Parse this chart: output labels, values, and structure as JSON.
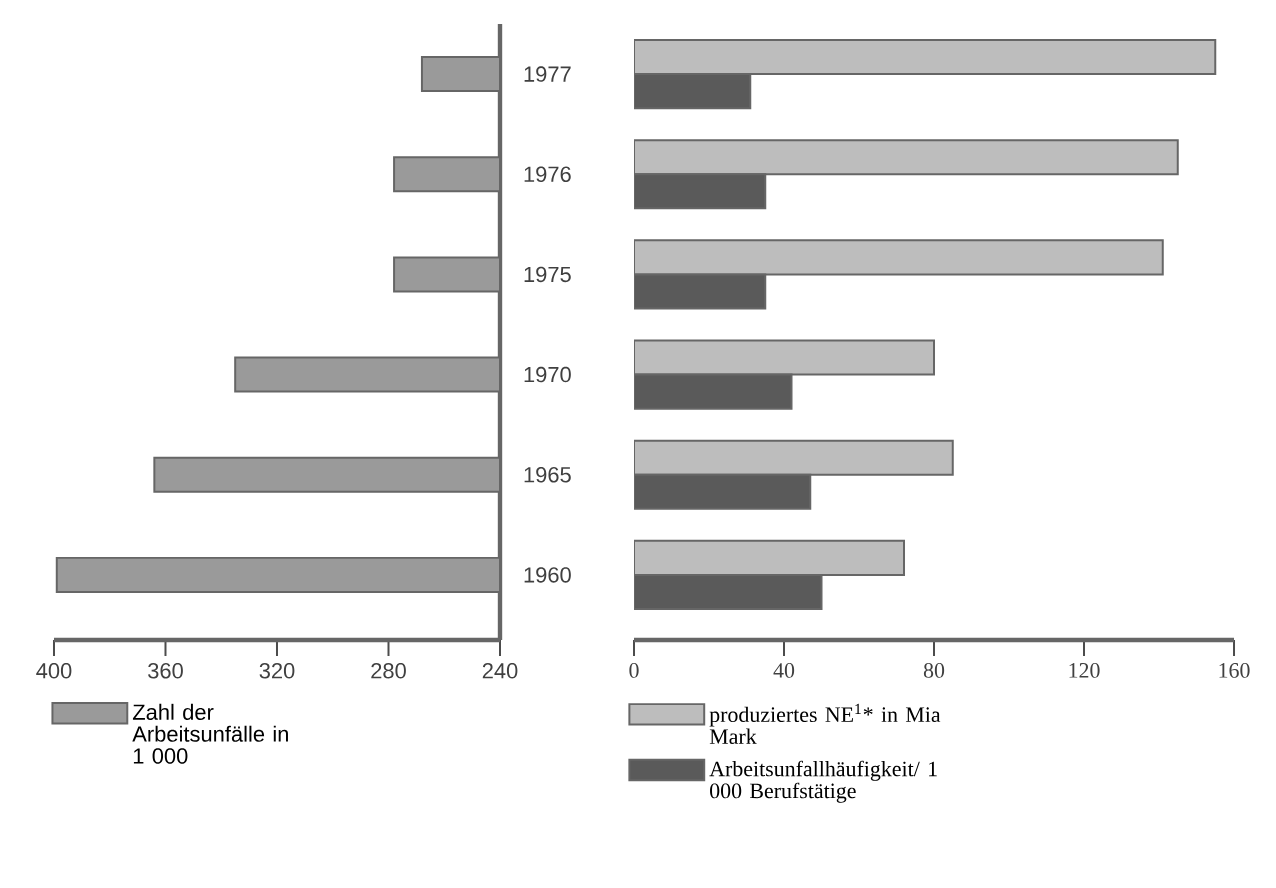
{
  "chart_data": [
    {
      "type": "bar",
      "orientation": "horizontal",
      "categories": [
        "1977",
        "1976",
        "1975",
        "1970",
        "1965",
        "1960"
      ],
      "series": [
        {
          "name": "Zahl der Arbeitsunfälle in 1 000",
          "color": "#9a9a9a",
          "values": [
            268,
            278,
            278,
            335,
            364,
            399
          ]
        }
      ],
      "xlim": [
        400,
        240
      ],
      "xticks": [
        400,
        360,
        320,
        280,
        240
      ],
      "legend": "bottom"
    },
    {
      "type": "bar",
      "orientation": "horizontal",
      "categories": [
        "1977",
        "1976",
        "1975",
        "1970",
        "1965",
        "1960"
      ],
      "tick_labels": "x",
      "series": [
        {
          "name": "produziertes NE$^{1}$* in Mia Mark",
          "color": "#bdbdbd",
          "values": [
            155,
            145,
            141,
            80,
            85,
            72
          ]
        },
        {
          "name": "Arbeitsunfallhäufigkeit/ 1 000 Berufstätige",
          "color": "#5a5a5a",
          "values": [
            31,
            35,
            35,
            42,
            47,
            50
          ]
        }
      ],
      "xlim": [
        0,
        160
      ],
      "xticks": [
        0,
        40,
        80,
        120,
        160
      ],
      "legend": "bottom"
    }
  ]
}
